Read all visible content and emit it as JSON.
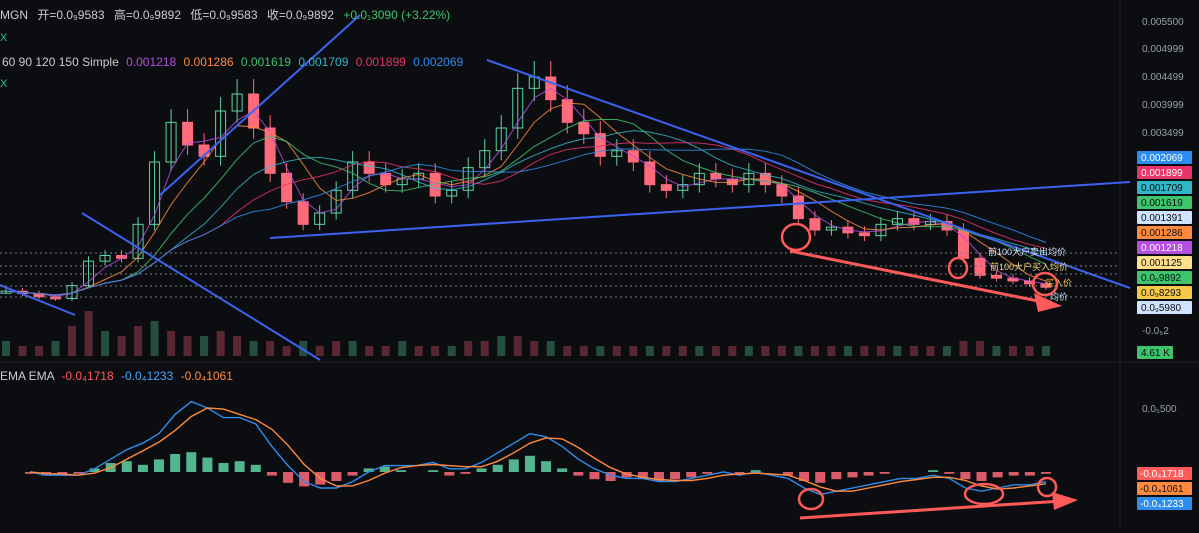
{
  "header": {
    "symbol": "MGN",
    "open_label": "开=0.0₉9583",
    "high_label": "高=0.0₉9892",
    "low_label": "低=0.0₉9583",
    "close_label": "收=0.0₉9892",
    "change_label": "+0.0₁3090 (+3.22%)",
    "sub_label_1": "X",
    "sub_label_2": "X"
  },
  "ma_legend": {
    "periods": "60 90 120 150 Simple",
    "values": [
      {
        "text": "0.001218",
        "color": "#b44fe0"
      },
      {
        "text": "0.001286",
        "color": "#ff8a3d"
      },
      {
        "text": "0.001619",
        "color": "#3ec46d"
      },
      {
        "text": "0.001709",
        "color": "#31b6c8"
      },
      {
        "text": "0.001899",
        "color": "#e8336b"
      },
      {
        "text": "0.002069",
        "color": "#2d8cf0"
      }
    ]
  },
  "macd_legend": {
    "label": "EMA EMA",
    "values": [
      {
        "text": "-0.0₄1718",
        "color": "#ff5b5b"
      },
      {
        "text": "-0.0₄1233",
        "color": "#4aa3ff"
      },
      {
        "text": "-0.0₄1061",
        "color": "#ff8a3d"
      }
    ]
  },
  "price_axis": {
    "ticks": [
      "0.005500",
      "0.004999",
      "0.004499",
      "0.003999",
      "0.003499",
      "-0.0₅2"
    ]
  },
  "price_badges": [
    {
      "text": "0.002069",
      "bg": "#2d8cf0",
      "fg": "#ffffff"
    },
    {
      "text": "0.001899",
      "bg": "#e8336b",
      "fg": "#ffffff"
    },
    {
      "text": "0.001709",
      "bg": "#31b6c8",
      "fg": "#0c0d10"
    },
    {
      "text": "0.001619",
      "bg": "#3ec46d",
      "fg": "#0c0d10"
    },
    {
      "text": "0.001391",
      "bg": "#cfe3ff",
      "fg": "#0c0d10"
    },
    {
      "text": "0.001286",
      "bg": "#ff8a3d",
      "fg": "#0c0d10"
    },
    {
      "text": "0.001218",
      "bg": "#b44fe0",
      "fg": "#ffffff"
    },
    {
      "text": "0.001125",
      "bg": "#ffe08a",
      "fg": "#0c0d10"
    },
    {
      "text": "0.0₉9892",
      "bg": "#3ec46d",
      "fg": "#0c0d10"
    },
    {
      "text": "0.0₉8293",
      "bg": "#f7c948",
      "fg": "#0c0d10"
    },
    {
      "text": "0.0₉5980",
      "bg": "#cfe3ff",
      "fg": "#0c0d10"
    }
  ],
  "volume_badge": {
    "text": "4.61 K",
    "bg": "#3ec46d",
    "fg": "#0c0d10"
  },
  "annotations": {
    "top100_sell": "前100大户卖出均价",
    "top100_buy": "前100大户买入均价",
    "buy_avg": "买入价",
    "avg_price": "均价"
  },
  "macd_axis": {
    "ticks": [
      "0.0₅500"
    ],
    "badges": [
      {
        "text": "-0.0₄1718",
        "bg": "#ff5b5b",
        "fg": "#ffffff"
      },
      {
        "text": "-0.0₄1061",
        "bg": "#ff8a3d",
        "fg": "#0c0d10"
      },
      {
        "text": "-0.0₄1233",
        "bg": "#2d8cf0",
        "fg": "#ffffff"
      }
    ]
  },
  "chart_data": {
    "type": "candlestick",
    "series_close_path": [
      0.00092,
      0.00088,
      0.00082,
      0.00079,
      0.00102,
      0.00145,
      0.00155,
      0.0015,
      0.0021,
      0.0032,
      0.0039,
      0.0035,
      0.0033,
      0.0041,
      0.0044,
      0.0038,
      0.003,
      0.0025,
      0.0021,
      0.0023,
      0.0027,
      0.0032,
      0.003,
      0.0028,
      0.0029,
      0.003,
      0.0026,
      0.0027,
      0.0031,
      0.0034,
      0.0038,
      0.0045,
      0.0047,
      0.0043,
      0.0039,
      0.0037,
      0.0033,
      0.0034,
      0.0032,
      0.0028,
      0.0027,
      0.0028,
      0.003,
      0.0029,
      0.0028,
      0.003,
      0.0028,
      0.0026,
      0.0022,
      0.002,
      0.00205,
      0.00195,
      0.0019,
      0.0021,
      0.0022,
      0.0021,
      0.00215,
      0.002,
      0.0015,
      0.0012,
      0.00115,
      0.0011,
      0.00105,
      0.00099
    ],
    "volume_path": [
      0.3,
      0.2,
      0.2,
      0.3,
      0.6,
      0.9,
      0.5,
      0.4,
      0.6,
      0.7,
      0.5,
      0.4,
      0.4,
      0.5,
      0.4,
      0.3,
      0.3,
      0.2,
      0.3,
      0.2,
      0.3,
      0.3,
      0.2,
      0.2,
      0.3,
      0.2,
      0.2,
      0.2,
      0.3,
      0.3,
      0.4,
      0.4,
      0.3,
      0.3,
      0.2,
      0.2,
      0.2,
      0.2,
      0.2,
      0.2,
      0.2,
      0.2,
      0.2,
      0.2,
      0.2,
      0.2,
      0.2,
      0.2,
      0.2,
      0.2,
      0.2,
      0.2,
      0.2,
      0.2,
      0.2,
      0.2,
      0.2,
      0.2,
      0.3,
      0.3,
      0.2,
      0.2,
      0.2,
      0.2
    ],
    "macd_hist_path": [
      -0.1,
      -0.2,
      -0.2,
      -0.1,
      0.2,
      0.5,
      0.6,
      0.4,
      0.7,
      1.0,
      1.1,
      0.8,
      0.5,
      0.6,
      0.4,
      -0.2,
      -0.6,
      -0.8,
      -0.7,
      -0.5,
      -0.2,
      0.2,
      0.3,
      0.1,
      0.0,
      0.1,
      -0.2,
      -0.1,
      0.2,
      0.4,
      0.7,
      0.9,
      0.6,
      0.2,
      -0.2,
      -0.4,
      -0.5,
      -0.3,
      -0.4,
      -0.5,
      -0.4,
      -0.3,
      -0.1,
      0.0,
      -0.1,
      0.1,
      0.0,
      -0.2,
      -0.5,
      -0.6,
      -0.4,
      -0.3,
      -0.2,
      -0.1,
      0.0,
      0.0,
      0.1,
      -0.1,
      -0.4,
      -0.5,
      -0.3,
      -0.2,
      -0.2,
      -0.1
    ],
    "macd_line_path": [
      0.0,
      -0.1,
      -0.1,
      -0.1,
      0.1,
      0.4,
      0.7,
      0.9,
      1.2,
      1.8,
      2.2,
      2.0,
      1.7,
      1.7,
      1.5,
      0.8,
      0.2,
      -0.3,
      -0.5,
      -0.5,
      -0.3,
      0.0,
      0.2,
      0.2,
      0.2,
      0.3,
      0.1,
      0.1,
      0.3,
      0.6,
      0.9,
      1.2,
      1.1,
      0.8,
      0.4,
      0.1,
      -0.1,
      -0.2,
      -0.2,
      -0.3,
      -0.3,
      -0.2,
      -0.1,
      0.0,
      -0.1,
      0.0,
      -0.1,
      -0.2,
      -0.5,
      -0.7,
      -0.6,
      -0.5,
      -0.4,
      -0.3,
      -0.2,
      -0.2,
      -0.1,
      -0.2,
      -0.5,
      -0.6,
      -0.5,
      -0.4,
      -0.4,
      -0.3
    ]
  }
}
